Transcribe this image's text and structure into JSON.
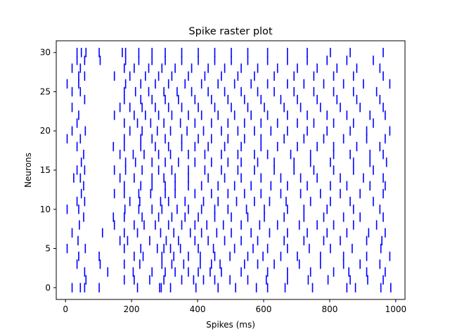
{
  "chart_data": {
    "type": "scatter",
    "marker": "vertical-line",
    "title": "Spike raster plot",
    "xlabel": "Spikes (ms)",
    "ylabel": "Neurons",
    "xlim": [
      -28,
      1028
    ],
    "ylim": [
      -1.5,
      31.5
    ],
    "xticks": [
      0,
      200,
      400,
      600,
      800,
      1000
    ],
    "yticks": [
      0,
      5,
      10,
      15,
      20,
      25,
      30
    ],
    "series_color": "#0000ff",
    "grid": false,
    "neuron_count": 31,
    "spike_times": [
      [
        20,
        45,
        58,
        102,
        218,
        285,
        290,
        318,
        395,
        462,
        515,
        578,
        612,
        665,
        748,
        852,
        878,
        955,
        985
      ],
      [
        62,
        178,
        208,
        255,
        298,
        352,
        388,
        418,
        452,
        498,
        552,
        608,
        672,
        735,
        795,
        862,
        915,
        962
      ],
      [
        58,
        128,
        205,
        262,
        302,
        332,
        372,
        402,
        438,
        472,
        532,
        612,
        672,
        742,
        812,
        858,
        912,
        968
      ],
      [
        35,
        105,
        178,
        225,
        292,
        322,
        358,
        408,
        442,
        468,
        542,
        582,
        632,
        708,
        772,
        842,
        892,
        952
      ],
      [
        40,
        102,
        208,
        235,
        292,
        328,
        372,
        408,
        452,
        498,
        552,
        598,
        652,
        702,
        772,
        842,
        912,
        982
      ],
      [
        5,
        60,
        178,
        228,
        278,
        298,
        318,
        348,
        402,
        448,
        512,
        568,
        612,
        672,
        738,
        802,
        868,
        955
      ],
      [
        38,
        165,
        188,
        255,
        305,
        342,
        392,
        432,
        482,
        532,
        582,
        662,
        722,
        782,
        832,
        912,
        958
      ],
      [
        20,
        112,
        178,
        218,
        288,
        328,
        378,
        412,
        458,
        502,
        562,
        618,
        672,
        732,
        792,
        852,
        918,
        968
      ],
      [
        42,
        148,
        208,
        238,
        272,
        312,
        352,
        392,
        428,
        478,
        532,
        588,
        642,
        708,
        762,
        812,
        872,
        942
      ],
      [
        55,
        145,
        178,
        232,
        282,
        322,
        362,
        402,
        452,
        502,
        552,
        602,
        662,
        722,
        782,
        842,
        892,
        962
      ],
      [
        5,
        40,
        180,
        222,
        262,
        292,
        338,
        372,
        412,
        452,
        492,
        548,
        602,
        672,
        722,
        792,
        872,
        952
      ],
      [
        35,
        58,
        195,
        225,
        288,
        312,
        362,
        418,
        462,
        518,
        572,
        618,
        668,
        742,
        802,
        862,
        932
      ],
      [
        48,
        148,
        178,
        222,
        258,
        302,
        332,
        392,
        442,
        492,
        542,
        592,
        652,
        712,
        772,
        832,
        892,
        962
      ],
      [
        55,
        178,
        228,
        262,
        302,
        332,
        372,
        412,
        462,
        512,
        562,
        622,
        672,
        732,
        802,
        852,
        922,
        968
      ],
      [
        25,
        45,
        165,
        208,
        262,
        298,
        332,
        372,
        432,
        482,
        532,
        592,
        652,
        712,
        762,
        832,
        902,
        962
      ],
      [
        35,
        58,
        148,
        182,
        232,
        282,
        322,
        372,
        422,
        472,
        522,
        572,
        632,
        692,
        752,
        812,
        872,
        932
      ],
      [
        48,
        182,
        212,
        262,
        302,
        342,
        392,
        442,
        492,
        532,
        582,
        632,
        692,
        742,
        802,
        872,
        922,
        972
      ],
      [
        55,
        165,
        205,
        238,
        282,
        318,
        372,
        422,
        472,
        522,
        572,
        612,
        682,
        742,
        812,
        862,
        922,
        962
      ],
      [
        35,
        145,
        178,
        228,
        272,
        312,
        352,
        392,
        432,
        482,
        532,
        592,
        642,
        702,
        762,
        812,
        882,
        952
      ],
      [
        5,
        45,
        178,
        228,
        262,
        302,
        352,
        402,
        442,
        492,
        542,
        592,
        662,
        722,
        782,
        842,
        912,
        968
      ],
      [
        20,
        60,
        195,
        232,
        278,
        318,
        368,
        418,
        472,
        522,
        572,
        622,
        672,
        732,
        792,
        862,
        912,
        982
      ],
      [
        35,
        178,
        218,
        258,
        298,
        348,
        392,
        442,
        492,
        542,
        592,
        642,
        702,
        752,
        812,
        872,
        932
      ],
      [
        40,
        148,
        208,
        242,
        282,
        322,
        372,
        412,
        462,
        512,
        562,
        612,
        672,
        732,
        792,
        852,
        922,
        968
      ],
      [
        20,
        165,
        195,
        232,
        272,
        312,
        352,
        402,
        452,
        502,
        552,
        602,
        662,
        712,
        772,
        832,
        892,
        962
      ],
      [
        58,
        178,
        228,
        262,
        302,
        342,
        392,
        442,
        492,
        542,
        592,
        652,
        702,
        762,
        822,
        882,
        952
      ],
      [
        20,
        45,
        178,
        212,
        252,
        298,
        338,
        382,
        432,
        482,
        532,
        582,
        632,
        692,
        752,
        812,
        872,
        942
      ],
      [
        5,
        40,
        182,
        228,
        272,
        312,
        362,
        412,
        462,
        512,
        562,
        612,
        672,
        722,
        782,
        842,
        902,
        982
      ],
      [
        40,
        58,
        148,
        195,
        242,
        282,
        322,
        372,
        422,
        472,
        522,
        572,
        632,
        692,
        752,
        812,
        872,
        962
      ],
      [
        20,
        45,
        178,
        208,
        252,
        292,
        332,
        382,
        432,
        482,
        532,
        582,
        642,
        702,
        762,
        822,
        882,
        952
      ],
      [
        35,
        58,
        105,
        182,
        222,
        262,
        302,
        352,
        402,
        452,
        502,
        552,
        612,
        672,
        732,
        792,
        852,
        932
      ],
      [
        35,
        48,
        62,
        102,
        172,
        182,
        222,
        262,
        302,
        352,
        402,
        452,
        502,
        552,
        612,
        672,
        732,
        802,
        862,
        962
      ]
    ]
  }
}
